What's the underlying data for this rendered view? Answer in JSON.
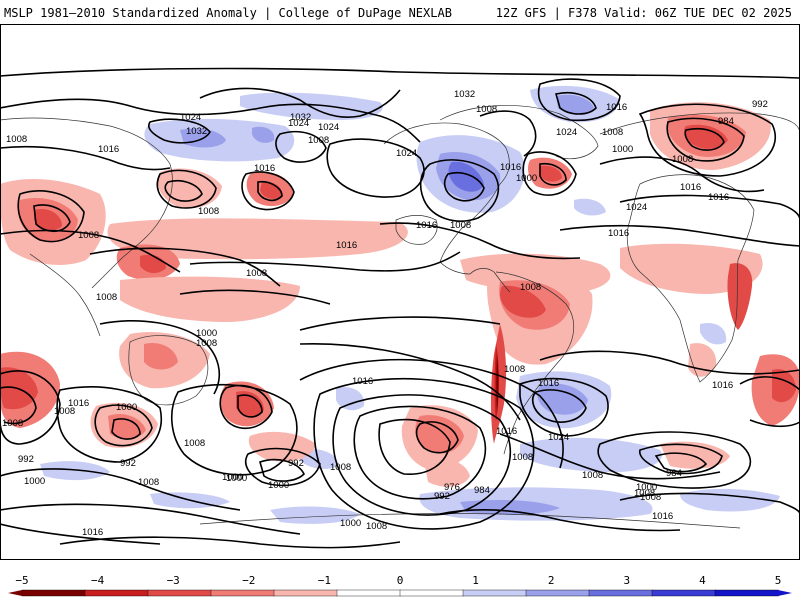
{
  "header": {
    "title": "MSLP 1981–2010 Standardized Anomaly | College of DuPage NEXLAB",
    "run_info": "12Z GFS | F378 Valid: 06Z TUE DEC 02 2025"
  },
  "colorbar": {
    "ticks": [
      "−5",
      "−4",
      "−3",
      "−2",
      "−1",
      "0",
      "1",
      "2",
      "3",
      "4",
      "5"
    ],
    "colors": [
      "#7a0000",
      "#c81e1e",
      "#e24a48",
      "#f07c75",
      "#f8b6ae",
      "#ffffff",
      "#ffffff",
      "#c8cdf5",
      "#9aa0ea",
      "#6a6fe0",
      "#3a3ad6",
      "#1414c8"
    ]
  },
  "map": {
    "contour_labels": [
      "992",
      "1024",
      "1032",
      "1008",
      "1016",
      "1024",
      "1024",
      "1032",
      "1032",
      "1024",
      "1008",
      "1008",
      "1016",
      "1024",
      "1016",
      "1008",
      "1016",
      "1000",
      "1000",
      "984",
      "1008",
      "1016",
      "1024",
      "1016",
      "1016",
      "1016",
      "1008",
      "1016",
      "1008",
      "1008",
      "1008",
      "1008",
      "1008",
      "1008",
      "1016",
      "1016",
      "1008",
      "1008",
      "1000",
      "1016",
      "1024",
      "1016",
      "1008",
      "1000",
      "1008",
      "992",
      "992",
      "1008",
      "992",
      "1008",
      "1000",
      "1016",
      "976",
      "984",
      "992",
      "984",
      "1008",
      "1000",
      "1008",
      "1008",
      "1000",
      "1000",
      "1016",
      "1000",
      "1008",
      "1016",
      "1008",
      "1000"
    ]
  }
}
